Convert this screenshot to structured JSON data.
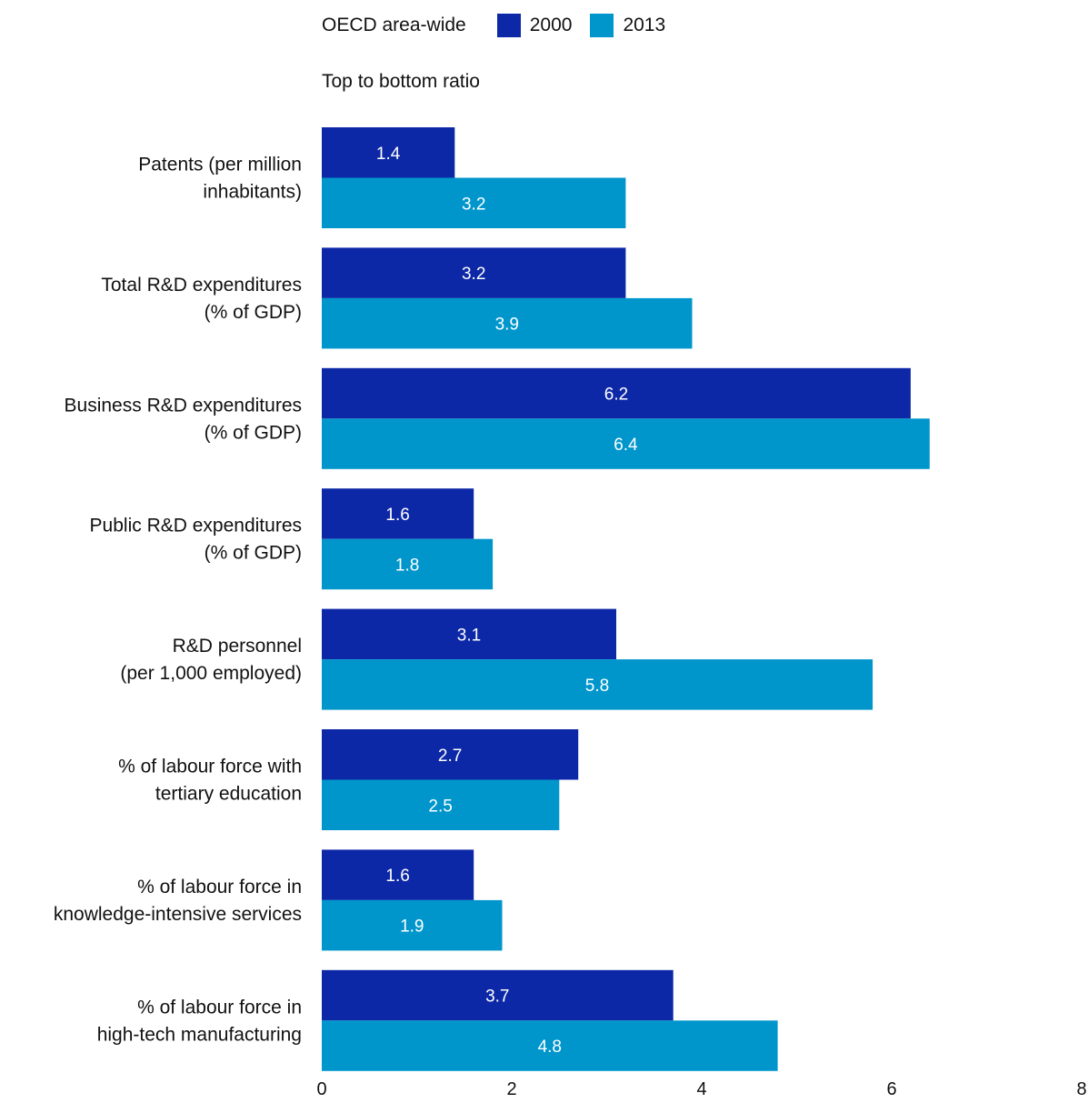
{
  "legend": {
    "group_label": "OECD area-wide",
    "items": [
      {
        "label": "2000",
        "color": "#0d28a6"
      },
      {
        "label": "2013",
        "color": "#0096cc"
      }
    ]
  },
  "chart_data": {
    "type": "bar",
    "orientation": "horizontal",
    "title": "",
    "xlabel": "Top to bottom ratio",
    "ylabel": "",
    "xlim": [
      0,
      8
    ],
    "xticks": [
      0,
      2,
      4,
      6,
      8
    ],
    "categories": [
      [
        "Patents (per million",
        "inhabitants)"
      ],
      [
        "Total R&D expenditures",
        "(% of GDP)"
      ],
      [
        "Business R&D expenditures",
        "(% of GDP)"
      ],
      [
        "Public R&D expenditures",
        "(% of GDP)"
      ],
      [
        "R&D personnel",
        "(per 1,000 employed)"
      ],
      [
        "% of labour force with",
        "tertiary education"
      ],
      [
        "% of labour force in",
        "knowledge-intensive services"
      ],
      [
        "% of labour force in",
        "high-tech manufacturing"
      ]
    ],
    "series": [
      {
        "name": "2000",
        "color": "#0d28a6",
        "values": [
          1.4,
          3.2,
          6.2,
          1.6,
          3.1,
          2.7,
          1.6,
          3.7
        ]
      },
      {
        "name": "2013",
        "color": "#0096cc",
        "values": [
          3.2,
          3.9,
          6.4,
          1.8,
          5.8,
          2.5,
          1.9,
          4.8
        ]
      }
    ],
    "grid": false,
    "legend_position": "top"
  }
}
